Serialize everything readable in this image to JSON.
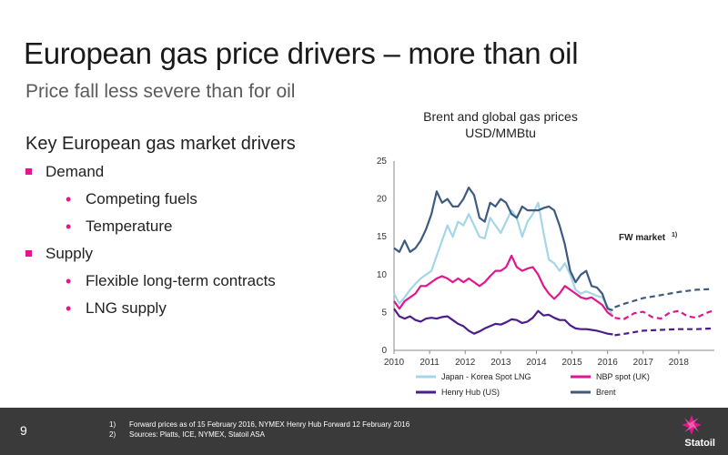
{
  "slide": {
    "title": "European gas price drivers – more than oil",
    "subtitle": "Price fall less severe than for oil",
    "drivers_heading": "Key European gas market drivers",
    "bullets": [
      {
        "label": "Demand",
        "level": 1
      },
      {
        "label": "Competing fuels",
        "level": 2
      },
      {
        "label": "Temperature",
        "level": 2
      },
      {
        "label": "Supply",
        "level": 1
      },
      {
        "label": "Flexible long-term contracts",
        "level": 2
      },
      {
        "label": "LNG supply",
        "level": 2
      }
    ],
    "page_number": "9",
    "footnotes": [
      {
        "num": "1)",
        "text": "Forward prices as of 15 February 2016, NYMEX Henry Hub Forward 12 February 2016"
      },
      {
        "num": "2)",
        "text": "Sources: Platts, ICE, NYMEX, Statoil ASA"
      }
    ],
    "logo_text": "Statoil",
    "accent_color": "#e5158f"
  },
  "chart_data": {
    "type": "line",
    "title": "Brent and global gas prices",
    "subtitle": "USD/MMBtu",
    "annotation": "FW market",
    "annotation_sup": "1)",
    "xlim": [
      2010,
      2019
    ],
    "ylim": [
      0,
      25
    ],
    "x_ticks": [
      2010,
      2011,
      2012,
      2013,
      2014,
      2015,
      2016,
      2017,
      2018
    ],
    "y_ticks": [
      0,
      5,
      10,
      15,
      20,
      25
    ],
    "forward_start": 2016.2,
    "grid": false,
    "legend_position": "bottom",
    "series": [
      {
        "name": "Japan - Korea Spot LNG",
        "color": "#a3d6e8",
        "x": [
          2010.0,
          2010.15,
          2010.3,
          2010.45,
          2010.6,
          2010.75,
          2010.9,
          2011.05,
          2011.2,
          2011.35,
          2011.5,
          2011.65,
          2011.8,
          2011.95,
          2012.1,
          2012.25,
          2012.4,
          2012.55,
          2012.7,
          2012.85,
          2013.0,
          2013.15,
          2013.3,
          2013.45,
          2013.6,
          2013.75,
          2013.9,
          2014.05,
          2014.2,
          2014.35,
          2014.5,
          2014.65,
          2014.8,
          2014.95,
          2015.1,
          2015.25,
          2015.4,
          2015.55,
          2015.7,
          2015.85,
          2016.0,
          2016.15
        ],
        "y": [
          7.5,
          6.2,
          7.0,
          8.0,
          8.8,
          9.5,
          10.0,
          10.5,
          12.5,
          14.5,
          16.5,
          15.0,
          17.0,
          16.5,
          18.0,
          16.5,
          15.0,
          14.8,
          17.5,
          16.5,
          15.5,
          17.0,
          18.5,
          17.5,
          15.0,
          17.0,
          18.0,
          19.5,
          15.5,
          12.0,
          11.5,
          10.5,
          11.5,
          10.0,
          8.0,
          7.5,
          7.8,
          7.5,
          7.2,
          7.0,
          5.8,
          4.5
        ]
      },
      {
        "name": "NBP spot (UK)",
        "color": "#e0158f",
        "x": [
          2010.0,
          2010.15,
          2010.3,
          2010.45,
          2010.6,
          2010.75,
          2010.9,
          2011.05,
          2011.2,
          2011.35,
          2011.5,
          2011.65,
          2011.8,
          2011.95,
          2012.1,
          2012.25,
          2012.4,
          2012.55,
          2012.7,
          2012.85,
          2013.0,
          2013.15,
          2013.3,
          2013.45,
          2013.6,
          2013.75,
          2013.9,
          2014.05,
          2014.2,
          2014.35,
          2014.5,
          2014.65,
          2014.8,
          2014.95,
          2015.1,
          2015.25,
          2015.4,
          2015.55,
          2015.7,
          2015.85,
          2016.0,
          2016.15
        ],
        "y": [
          6.5,
          5.5,
          6.5,
          7.0,
          7.5,
          8.5,
          8.5,
          9.0,
          9.5,
          9.8,
          9.5,
          9.0,
          9.5,
          9.0,
          9.5,
          9.0,
          8.5,
          9.0,
          9.8,
          10.5,
          10.5,
          11.0,
          12.5,
          11.0,
          10.5,
          10.8,
          11.0,
          10.0,
          8.5,
          7.5,
          6.8,
          7.5,
          8.5,
          8.0,
          7.5,
          7.0,
          6.8,
          7.0,
          6.5,
          6.0,
          5.0,
          4.5
        ]
      },
      {
        "name": "Henry Hub (US)",
        "color": "#4b1c8c",
        "x": [
          2010.0,
          2010.15,
          2010.3,
          2010.45,
          2010.6,
          2010.75,
          2010.9,
          2011.05,
          2011.2,
          2011.35,
          2011.5,
          2011.65,
          2011.8,
          2011.95,
          2012.1,
          2012.25,
          2012.4,
          2012.55,
          2012.7,
          2012.85,
          2013.0,
          2013.15,
          2013.3,
          2013.45,
          2013.6,
          2013.75,
          2013.9,
          2014.05,
          2014.2,
          2014.35,
          2014.5,
          2014.65,
          2014.8,
          2014.95,
          2015.1,
          2015.25,
          2015.4,
          2015.55,
          2015.7,
          2015.85,
          2016.0,
          2016.15
        ],
        "y": [
          5.5,
          4.5,
          4.2,
          4.5,
          4.0,
          3.8,
          4.2,
          4.3,
          4.2,
          4.4,
          4.5,
          4.0,
          3.5,
          3.2,
          2.6,
          2.2,
          2.5,
          2.9,
          3.2,
          3.5,
          3.4,
          3.7,
          4.1,
          4.0,
          3.6,
          3.8,
          4.3,
          5.2,
          4.6,
          4.7,
          4.3,
          4.0,
          4.0,
          3.3,
          2.9,
          2.8,
          2.8,
          2.7,
          2.6,
          2.4,
          2.2,
          2.1
        ]
      },
      {
        "name": "Brent",
        "color": "#3d5a80",
        "x": [
          2010.0,
          2010.15,
          2010.3,
          2010.45,
          2010.6,
          2010.75,
          2010.9,
          2011.05,
          2011.2,
          2011.35,
          2011.5,
          2011.65,
          2011.8,
          2011.95,
          2012.1,
          2012.25,
          2012.4,
          2012.55,
          2012.7,
          2012.85,
          2013.0,
          2013.15,
          2013.3,
          2013.45,
          2013.6,
          2013.75,
          2013.9,
          2014.05,
          2014.2,
          2014.35,
          2014.5,
          2014.65,
          2014.8,
          2014.95,
          2015.1,
          2015.25,
          2015.4,
          2015.55,
          2015.7,
          2015.85,
          2016.0,
          2016.15
        ],
        "y": [
          13.5,
          13.0,
          14.5,
          13.0,
          13.5,
          14.5,
          16.0,
          18.0,
          21.0,
          19.5,
          20.0,
          19.0,
          19.0,
          20.0,
          21.5,
          20.5,
          17.5,
          17.0,
          19.5,
          19.0,
          20.0,
          19.5,
          18.0,
          17.5,
          19.0,
          18.5,
          18.5,
          18.5,
          18.8,
          19.0,
          18.5,
          16.5,
          14.0,
          10.5,
          9.0,
          10.0,
          10.5,
          8.5,
          8.3,
          7.5,
          5.5,
          5.3
        ]
      }
    ],
    "forward_series": [
      {
        "name": "Brent",
        "color": "#3d5a80",
        "x": [
          2016.2,
          2016.5,
          2017.0,
          2017.5,
          2018.0,
          2018.5,
          2018.95
        ],
        "y": [
          5.7,
          6.2,
          6.9,
          7.3,
          7.7,
          8.0,
          8.1
        ]
      },
      {
        "name": "NBP spot (UK)",
        "color": "#e0158f",
        "x": [
          2016.2,
          2016.45,
          2016.75,
          2017.0,
          2017.25,
          2017.5,
          2017.75,
          2018.0,
          2018.25,
          2018.5,
          2018.75,
          2018.95
        ],
        "y": [
          4.3,
          4.1,
          4.9,
          5.1,
          4.4,
          4.2,
          5.0,
          5.2,
          4.5,
          4.3,
          4.9,
          5.2
        ]
      },
      {
        "name": "Henry Hub (US)",
        "color": "#4b1c8c",
        "x": [
          2016.2,
          2016.5,
          2017.0,
          2017.5,
          2018.0,
          2018.5,
          2018.95
        ],
        "y": [
          2.0,
          2.2,
          2.6,
          2.7,
          2.8,
          2.8,
          2.9
        ]
      }
    ]
  }
}
